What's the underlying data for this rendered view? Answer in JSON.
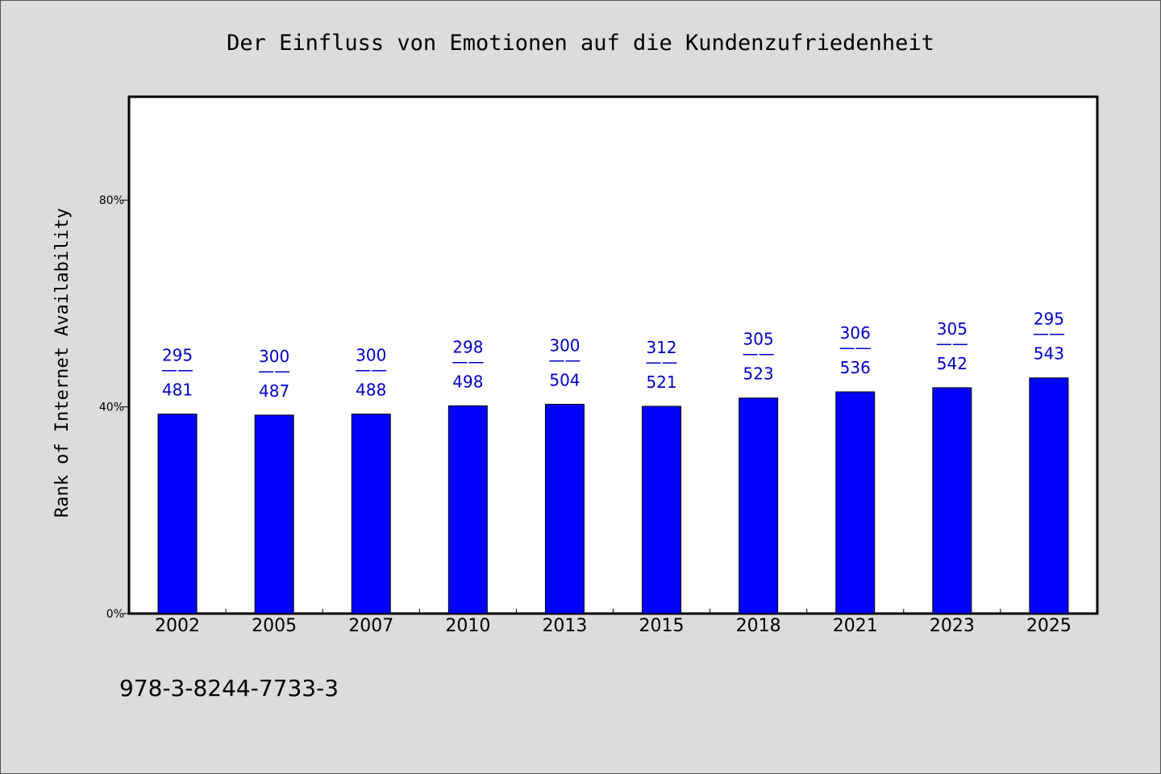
{
  "chart_data": {
    "type": "bar",
    "title": "Der Einfluss von Emotionen auf die Kundenzufriedenheit",
    "ylabel": "Rank of Internet Availability",
    "xlabel": "",
    "ylim": [
      0,
      100
    ],
    "yticks": [
      0,
      40,
      80
    ],
    "ytick_labels": [
      "0%",
      "40%",
      "80%"
    ],
    "categories": [
      "2002",
      "2005",
      "2007",
      "2010",
      "2013",
      "2015",
      "2018",
      "2021",
      "2023",
      "2025"
    ],
    "values": [
      38.6,
      38.4,
      38.6,
      40.2,
      40.5,
      40.1,
      41.7,
      42.9,
      43.7,
      45.6
    ],
    "labels_top": [
      "295",
      "300",
      "300",
      "298",
      "300",
      "312",
      "305",
      "306",
      "305",
      "295"
    ],
    "labels_bottom": [
      "481",
      "487",
      "488",
      "498",
      "504",
      "521",
      "523",
      "536",
      "542",
      "543"
    ],
    "label_separator": "——",
    "bar_color": "#0000ff",
    "label_color": "#0000c8",
    "grid": false,
    "legend": "none"
  },
  "footer": {
    "isbn": "978-3-8244-7733-3"
  },
  "colors": {
    "background": "#dcdcdc",
    "plot_background": "#ffffff"
  }
}
